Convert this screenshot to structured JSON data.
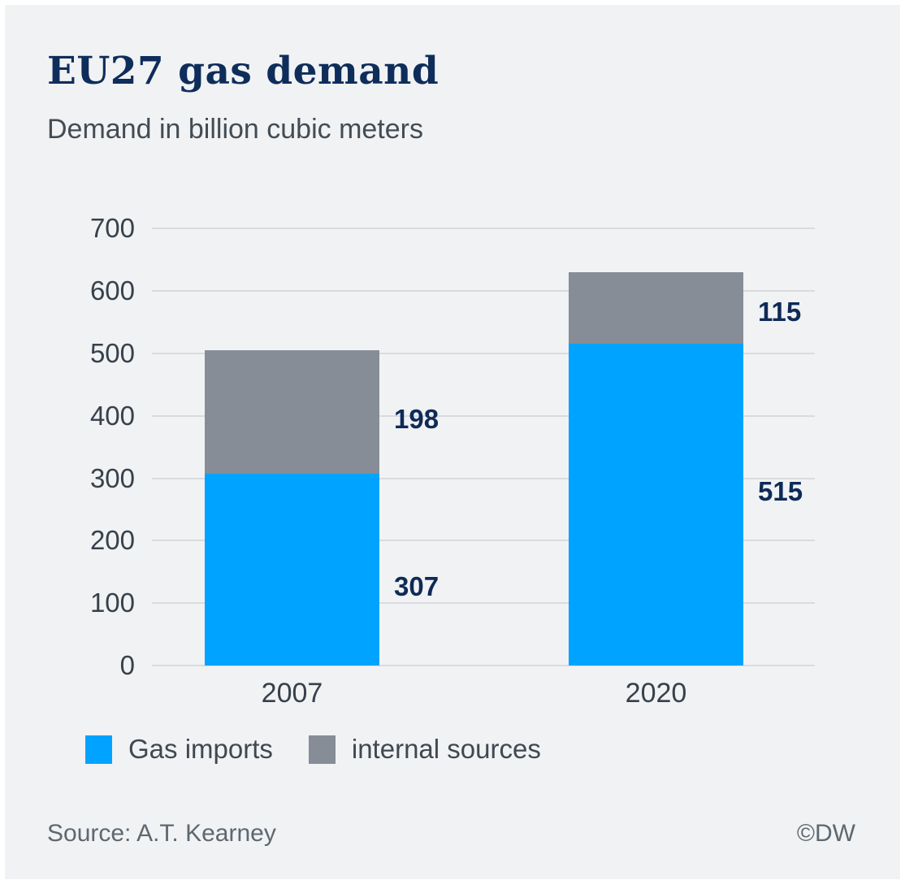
{
  "header": {
    "title": "EU27 gas demand",
    "subtitle": "Demand in billion cubic meters"
  },
  "chart_data": {
    "type": "bar",
    "stacked": true,
    "title": "EU27 gas demand",
    "subtitle": "Demand in billion cubic meters",
    "categories": [
      "2007",
      "2020"
    ],
    "series": [
      {
        "name": "Gas imports",
        "color": "#00a3ff",
        "values": [
          307,
          515
        ]
      },
      {
        "name": "internal sources",
        "color": "#868d96",
        "values": [
          198,
          115
        ]
      }
    ],
    "totals": [
      505,
      630
    ],
    "xlabel": "",
    "ylabel": "Demand in billion cubic meters",
    "ylim": [
      0,
      700
    ],
    "yticks": [
      0,
      100,
      200,
      300,
      400,
      500,
      600,
      700
    ],
    "grid": true,
    "legend_position": "bottom"
  },
  "footer": {
    "source": "Source: A.T. Kearney",
    "copyright": "©DW"
  },
  "colors": {
    "panel_background": "#f1f2f4",
    "title": "#0e2d5a",
    "subtitle": "#434c54",
    "axis_text": "#37414b",
    "value_label": "#0e2b57",
    "gridline": "#d9dbdf",
    "footer_text": "#5d6870",
    "bar_blue": "#00a3ff",
    "bar_gray": "#868d96"
  }
}
